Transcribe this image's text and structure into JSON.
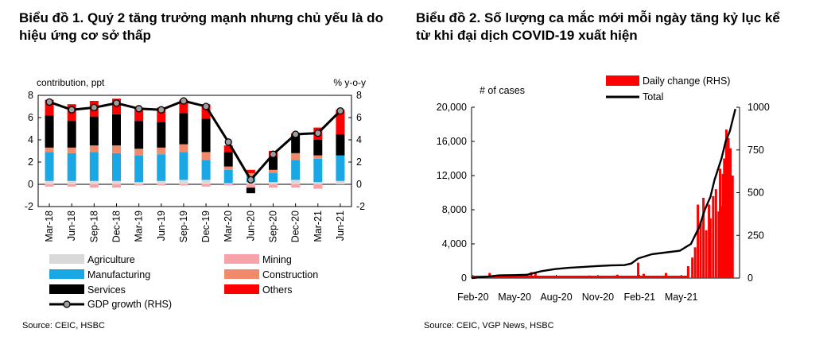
{
  "chart_data": [
    {
      "type": "bar",
      "stacked": true,
      "title": "Biểu đồ 1. Quý 2 tăng trưởng mạnh nhưng chủ yếu là do hiệu ứng cơ sở thấp",
      "left_axis_label": "contribution,  ppt",
      "right_axis_label": "% y-o-y",
      "ylim": [
        -2,
        8
      ],
      "yticks": [
        "-2",
        "0",
        "2",
        "4",
        "6",
        "8"
      ],
      "categories": [
        "Mar-18",
        "Jun-18",
        "Sep-18",
        "Dec-18",
        "Mar-19",
        "Jun-19",
        "Sep-19",
        "Dec-19",
        "Mar-20",
        "Jun-20",
        "Sep-20",
        "Dec-20",
        "Mar-21",
        "Jun-21"
      ],
      "series": [
        {
          "name": "Agriculture",
          "color": "#d9d9d9",
          "values": [
            0.3,
            0.3,
            0.3,
            0.3,
            0.2,
            0.3,
            0.4,
            0.4,
            0.1,
            0.2,
            0.2,
            0.4,
            0.2,
            0.3
          ]
        },
        {
          "name": "Mining",
          "color": "#f7a1a8",
          "values": [
            -0.2,
            -0.2,
            -0.3,
            -0.3,
            -0.1,
            -0.1,
            -0.1,
            -0.2,
            -0.1,
            -0.3,
            -0.3,
            -0.3,
            -0.4,
            0.0
          ]
        },
        {
          "name": "Manufacturing",
          "color": "#1aa7e6",
          "values": [
            2.6,
            2.5,
            2.6,
            2.5,
            2.4,
            2.4,
            2.5,
            1.8,
            1.2,
            0.5,
            0.8,
            1.8,
            2.1,
            2.3
          ]
        },
        {
          "name": "Construction",
          "color": "#f08a6a",
          "values": [
            0.4,
            0.5,
            0.6,
            0.7,
            0.6,
            0.6,
            0.7,
            0.7,
            0.3,
            0.3,
            0.3,
            0.6,
            0.3,
            0.0
          ]
        },
        {
          "name": "Services",
          "color": "#000000",
          "values": [
            2.9,
            2.4,
            2.6,
            2.8,
            2.5,
            2.3,
            2.8,
            3.0,
            1.3,
            -0.5,
            1.2,
            1.7,
            1.4,
            1.9
          ]
        },
        {
          "name": "Others",
          "color": "#ff0000",
          "values": [
            1.4,
            1.5,
            1.4,
            1.4,
            1.2,
            1.3,
            1.2,
            1.3,
            0.6,
            0.3,
            0.5,
            0.1,
            1.1,
            2.2
          ]
        }
      ],
      "line": {
        "name": "GDP growth (RHS)",
        "color": "#000000",
        "marker": "#9e9e9e",
        "values": [
          7.4,
          6.7,
          6.9,
          7.3,
          6.8,
          6.7,
          7.5,
          7.0,
          3.8,
          0.4,
          2.7,
          4.5,
          4.6,
          6.6
        ]
      },
      "source": "Source: CEIC, HSBC"
    },
    {
      "type": "bar+line",
      "title": "Biểu đồ 2. Số lượng ca mắc mới mỗi ngày tăng kỷ lục kể từ khi đại dịch COVID-19 xuất hiện",
      "left_axis_label": "# of cases",
      "left_ylim": [
        0,
        20000
      ],
      "left_yticks": [
        "0",
        "4,000",
        "8,000",
        "12,000",
        "16,000",
        "20,000"
      ],
      "right_ylim": [
        0,
        1000
      ],
      "right_yticks": [
        "0",
        "250",
        "500",
        "750",
        "1000"
      ],
      "xticks": [
        "Feb-20",
        "May-20",
        "Aug-20",
        "Nov-20",
        "Feb-21",
        "May-21"
      ],
      "legend": [
        "Daily change (RHS)",
        "Total"
      ],
      "bar_color": "#ff0000",
      "line_color": "#000000",
      "total_points": [
        [
          0,
          0
        ],
        [
          1,
          150
        ],
        [
          2,
          320
        ],
        [
          3,
          340
        ],
        [
          4,
          390
        ],
        [
          5,
          800
        ],
        [
          6,
          1050
        ],
        [
          7,
          1200
        ],
        [
          8,
          1300
        ],
        [
          9,
          1400
        ],
        [
          10,
          1480
        ],
        [
          11,
          1520
        ],
        [
          11.5,
          1700
        ],
        [
          12,
          2300
        ],
        [
          13,
          2800
        ],
        [
          14,
          3000
        ],
        [
          15,
          3200
        ],
        [
          15.8,
          4000
        ],
        [
          16.4,
          6000
        ],
        [
          16.8,
          8000
        ],
        [
          17.2,
          9500
        ],
        [
          17.5,
          11500
        ],
        [
          17.8,
          13000
        ],
        [
          18.0,
          14000
        ],
        [
          18.3,
          16000
        ],
        [
          18.6,
          17200
        ],
        [
          18.8,
          18500
        ],
        [
          19.0,
          19800
        ]
      ],
      "daily_spikes": [
        [
          1.3,
          30
        ],
        [
          4.0,
          25
        ],
        [
          4.3,
          35
        ],
        [
          4.6,
          30
        ],
        [
          8.5,
          15
        ],
        [
          10.5,
          20
        ],
        [
          12.0,
          90
        ],
        [
          12.4,
          25
        ],
        [
          14.0,
          30
        ],
        [
          15.6,
          70
        ],
        [
          15.9,
          120
        ],
        [
          16.1,
          180
        ],
        [
          16.3,
          430
        ],
        [
          16.5,
          330
        ],
        [
          16.7,
          470
        ],
        [
          16.9,
          280
        ],
        [
          17.1,
          430
        ],
        [
          17.2,
          350
        ],
        [
          17.4,
          480
        ],
        [
          17.6,
          520
        ],
        [
          17.8,
          390
        ],
        [
          17.9,
          640
        ],
        [
          18.0,
          420
        ],
        [
          18.1,
          610
        ],
        [
          18.2,
          700
        ],
        [
          18.35,
          870
        ],
        [
          18.5,
          820
        ],
        [
          18.65,
          760
        ],
        [
          18.8,
          600
        ]
      ],
      "source": "Source: CEIC, VGP News, HSBC"
    }
  ]
}
